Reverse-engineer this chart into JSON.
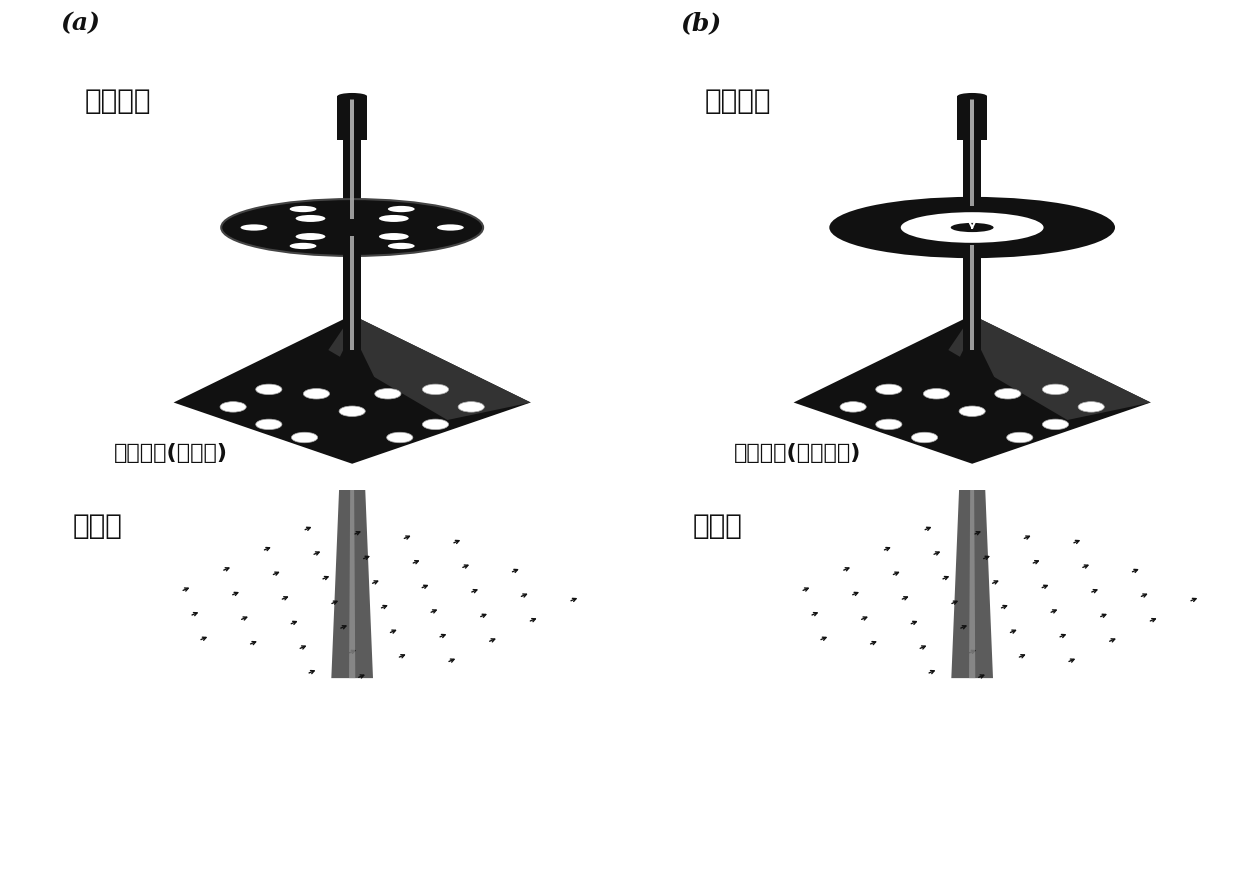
{
  "bg_color": "#ffffff",
  "fig_width": 12.4,
  "fig_height": 8.75,
  "label_a": "(a)",
  "label_b": "(b)",
  "text_a_top": "分立光束",
  "text_b_top": "渦旋光束",
  "text_a_mid": "超颜表面(金属态)",
  "text_b_mid": "超颜表面(半导体态)",
  "text_a_bot": "入射光",
  "text_b_bot": "入射光",
  "dark_color": "#111111",
  "mid_color": "#555555",
  "light_color": "#cccccc",
  "white_color": "#ffffff"
}
